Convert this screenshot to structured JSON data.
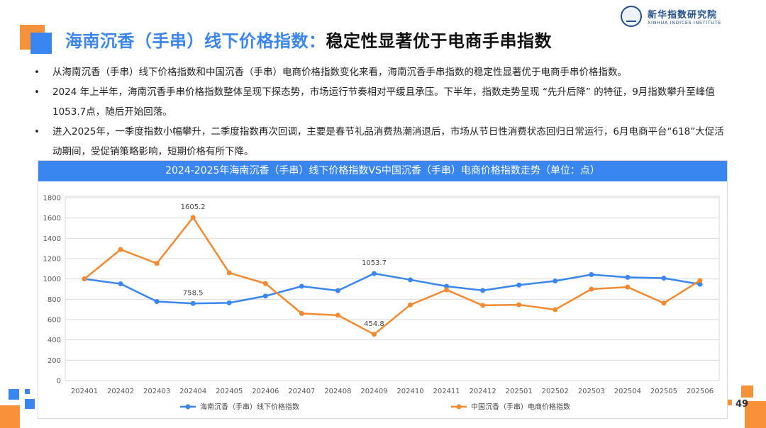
{
  "header": {
    "title_part1": "海南沉香（手串）线下价格指数：",
    "title_part2": "稳定性显著优于电商手串指数",
    "logo_name": "新华指数研究院",
    "logo_en": "XINHUA INDICES INSTITUTE"
  },
  "bullets": [
    {
      "marker": "•",
      "text": "从海南沉香（手串）线下价格指数和中国沉香（手串）电商价格指数变化来看，海南沉香手串指数的稳定性显著优于电商手串价格指数。"
    },
    {
      "marker": "•",
      "text": "2024 年上半年，海南沉香手串价格指数整体呈现下探态势，市场运行节奏相对平缓且承压。下半年，指数走势呈现 “先升后降” 的特征，9月指数攀升至峰值1053.7点，随后开始回落。"
    },
    {
      "marker": "•",
      "text": "进入2025年，一季度指数小幅攀升，二季度指数再次回调，主要是春节礼品消费热潮消退后，市场从节日性消费状态回归日常运行，6月电商平台“618”大促活动期间，受促销策略影响，短期价格有所下降。"
    }
  ],
  "page_number": "49",
  "colors": {
    "accent_blue": "#3a86f0",
    "accent_orange": "#f7913a",
    "series1": "#3a86f0",
    "series2": "#f4892f"
  },
  "chart_data": {
    "type": "line",
    "title": "2024-2025年海南沉香（手串）线下价格指数VS中国沉香（手串）电商价格指数走势（单位：点）",
    "categories": [
      "202401",
      "202402",
      "202403",
      "202404",
      "202405",
      "202406",
      "202407",
      "202408",
      "202409",
      "202410",
      "202411",
      "202412",
      "202501",
      "202502",
      "202503",
      "202504",
      "202505",
      "202506"
    ],
    "yticks": [
      "0",
      "200",
      "400",
      "600",
      "800",
      "1000",
      "1200",
      "1400",
      "1600",
      "1800"
    ],
    "ylim": [
      0,
      1800
    ],
    "legend_position": "bottom",
    "series": [
      {
        "name": "海南沉香（手串）线下价格指数",
        "color": "#3a86f0",
        "values": [
          1000,
          952,
          778,
          758.5,
          765,
          832,
          928,
          885,
          1053.7,
          992,
          928,
          887,
          940,
          980,
          1043,
          1016,
          1008,
          948
        ],
        "labels": [
          {
            "index": 3,
            "text": "758.5"
          },
          {
            "index": 8,
            "text": "1053.7"
          }
        ]
      },
      {
        "name": "中国沉香（手串）电商价格指数",
        "color": "#f4892f",
        "values": [
          1000,
          1290,
          1153,
          1605.2,
          1060,
          955,
          660,
          643,
          454.8,
          745,
          893,
          740,
          746,
          698,
          900,
          920,
          762,
          985
        ],
        "labels": [
          {
            "index": 3,
            "text": "1605.2"
          },
          {
            "index": 8,
            "text": "454.8"
          }
        ]
      }
    ]
  }
}
